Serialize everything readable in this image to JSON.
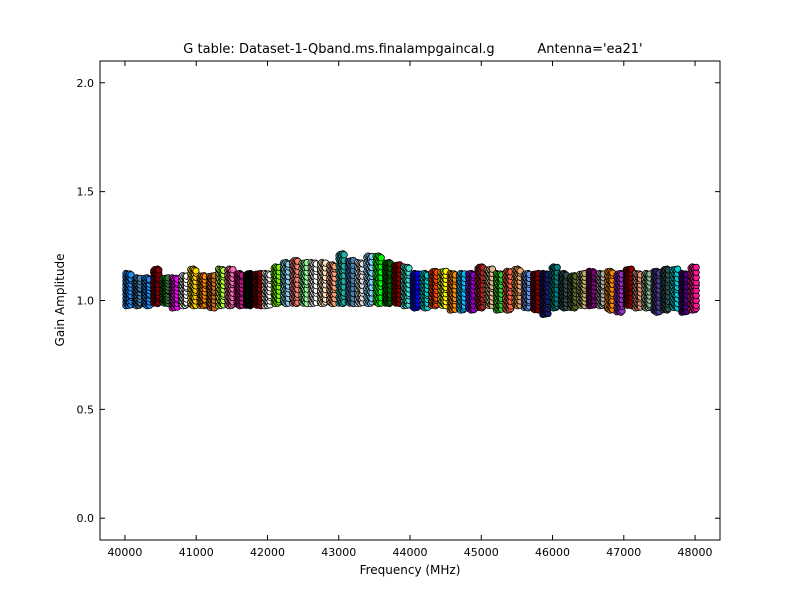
{
  "chart_data": {
    "type": "scatter",
    "title": "G table: Dataset-1-Qband.ms.finalampgaincal.g",
    "antenna_label": "Antenna='ea21'",
    "xlabel": "Frequency (MHz)",
    "ylabel": "Gain Amplitude",
    "xlim": [
      39650,
      48350
    ],
    "ylim": [
      -0.1,
      2.1
    ],
    "xticks": [
      40000,
      41000,
      42000,
      43000,
      44000,
      45000,
      46000,
      47000,
      48000
    ],
    "yticks": [
      0.0,
      0.5,
      1.0,
      1.5,
      2.0
    ],
    "ytick_labels": [
      "0.0",
      "0.5",
      "1.0",
      "1.5",
      "2.0"
    ],
    "grid": false,
    "marker": "circle",
    "spws": [
      {
        "freq": 40050,
        "low": 0.98,
        "high": 1.12,
        "color": "#1e90ff"
      },
      {
        "freq": 40180,
        "low": 0.98,
        "high": 1.1,
        "color": "#4682b4"
      },
      {
        "freq": 40310,
        "low": 0.98,
        "high": 1.1,
        "color": "#1e90ff"
      },
      {
        "freq": 40440,
        "low": 0.99,
        "high": 1.14,
        "color": "#8b0000"
      },
      {
        "freq": 40570,
        "low": 0.99,
        "high": 1.1,
        "color": "#228b22"
      },
      {
        "freq": 40700,
        "low": 0.97,
        "high": 1.1,
        "color": "#ff00ff"
      },
      {
        "freq": 40830,
        "low": 0.98,
        "high": 1.11,
        "color": "#ffffff"
      },
      {
        "freq": 40960,
        "low": 0.98,
        "high": 1.14,
        "color": "#ffd700"
      },
      {
        "freq": 41090,
        "low": 0.98,
        "high": 1.11,
        "color": "#ff8c00"
      },
      {
        "freq": 41220,
        "low": 0.97,
        "high": 1.11,
        "color": "#d2691e"
      },
      {
        "freq": 41350,
        "low": 0.98,
        "high": 1.14,
        "color": "#adff2f"
      },
      {
        "freq": 41480,
        "low": 0.98,
        "high": 1.14,
        "color": "#ff69b4"
      },
      {
        "freq": 41610,
        "low": 0.98,
        "high": 1.12,
        "color": "#c71585"
      },
      {
        "freq": 41740,
        "low": 0.98,
        "high": 1.12,
        "color": "#000000"
      },
      {
        "freq": 41870,
        "low": 0.98,
        "high": 1.12,
        "color": "#8b0000"
      },
      {
        "freq": 42000,
        "low": 0.98,
        "high": 1.12,
        "color": "#ffffff"
      },
      {
        "freq": 42130,
        "low": 0.99,
        "high": 1.15,
        "color": "#7cfc00"
      },
      {
        "freq": 42260,
        "low": 0.99,
        "high": 1.17,
        "color": "#87ceeb"
      },
      {
        "freq": 42390,
        "low": 0.99,
        "high": 1.18,
        "color": "#fa8072"
      },
      {
        "freq": 42520,
        "low": 0.99,
        "high": 1.17,
        "color": "#98fb98"
      },
      {
        "freq": 42650,
        "low": 0.99,
        "high": 1.17,
        "color": "#ffffff"
      },
      {
        "freq": 42780,
        "low": 0.99,
        "high": 1.17,
        "color": "#ffe4c4"
      },
      {
        "freq": 42910,
        "low": 0.99,
        "high": 1.16,
        "color": "#ffa07a"
      },
      {
        "freq": 43040,
        "low": 0.99,
        "high": 1.21,
        "color": "#20b2aa"
      },
      {
        "freq": 43170,
        "low": 0.99,
        "high": 1.18,
        "color": "#4682b4"
      },
      {
        "freq": 43300,
        "low": 0.99,
        "high": 1.17,
        "color": "#dcdcdc"
      },
      {
        "freq": 43430,
        "low": 0.99,
        "high": 1.2,
        "color": "#87cefa"
      },
      {
        "freq": 43560,
        "low": 0.99,
        "high": 1.2,
        "color": "#00ff00"
      },
      {
        "freq": 43690,
        "low": 0.99,
        "high": 1.17,
        "color": "#006400"
      },
      {
        "freq": 43820,
        "low": 0.99,
        "high": 1.16,
        "color": "#8b0000"
      },
      {
        "freq": 43950,
        "low": 0.98,
        "high": 1.15,
        "color": "#40e0d0"
      },
      {
        "freq": 44080,
        "low": 0.97,
        "high": 1.12,
        "color": "#0000ff"
      },
      {
        "freq": 44210,
        "low": 0.97,
        "high": 1.12,
        "color": "#00ced1"
      },
      {
        "freq": 44340,
        "low": 0.98,
        "high": 1.13,
        "color": "#ff4500"
      },
      {
        "freq": 44470,
        "low": 0.98,
        "high": 1.13,
        "color": "#ffff00"
      },
      {
        "freq": 44600,
        "low": 0.96,
        "high": 1.12,
        "color": "#ff8c00"
      },
      {
        "freq": 44730,
        "low": 0.96,
        "high": 1.12,
        "color": "#00bfff"
      },
      {
        "freq": 44860,
        "low": 0.96,
        "high": 1.12,
        "color": "#9400d3"
      },
      {
        "freq": 44990,
        "low": 0.97,
        "high": 1.15,
        "color": "#b22222"
      },
      {
        "freq": 45120,
        "low": 0.98,
        "high": 1.14,
        "color": "#deb887"
      },
      {
        "freq": 45250,
        "low": 0.96,
        "high": 1.12,
        "color": "#32cd32"
      },
      {
        "freq": 45380,
        "low": 0.96,
        "high": 1.13,
        "color": "#ff6347"
      },
      {
        "freq": 45510,
        "low": 0.98,
        "high": 1.14,
        "color": "#f4a460"
      },
      {
        "freq": 45640,
        "low": 0.97,
        "high": 1.12,
        "color": "#6495ed"
      },
      {
        "freq": 45770,
        "low": 0.96,
        "high": 1.12,
        "color": "#800000"
      },
      {
        "freq": 45900,
        "low": 0.94,
        "high": 1.12,
        "color": "#191970"
      },
      {
        "freq": 46030,
        "low": 0.97,
        "high": 1.15,
        "color": "#008080"
      },
      {
        "freq": 46160,
        "low": 0.97,
        "high": 1.12,
        "color": "#2f4f4f"
      },
      {
        "freq": 46290,
        "low": 0.97,
        "high": 1.11,
        "color": "#556b2f"
      },
      {
        "freq": 46420,
        "low": 0.98,
        "high": 1.12,
        "color": "#bdb76b"
      },
      {
        "freq": 46550,
        "low": 0.98,
        "high": 1.13,
        "color": "#800080"
      },
      {
        "freq": 46680,
        "low": 0.98,
        "high": 1.12,
        "color": "#a9a9a9"
      },
      {
        "freq": 46810,
        "low": 0.96,
        "high": 1.13,
        "color": "#ff8c00"
      },
      {
        "freq": 46940,
        "low": 0.95,
        "high": 1.12,
        "color": "#9932cc"
      },
      {
        "freq": 47070,
        "low": 0.98,
        "high": 1.14,
        "color": "#8b0000"
      },
      {
        "freq": 47200,
        "low": 0.97,
        "high": 1.12,
        "color": "#e9967a"
      },
      {
        "freq": 47330,
        "low": 0.97,
        "high": 1.12,
        "color": "#8fbc8f"
      },
      {
        "freq": 47460,
        "low": 0.95,
        "high": 1.13,
        "color": "#483d8b"
      },
      {
        "freq": 47590,
        "low": 0.96,
        "high": 1.14,
        "color": "#2f4f4f"
      },
      {
        "freq": 47720,
        "low": 0.97,
        "high": 1.14,
        "color": "#00ced1"
      },
      {
        "freq": 47850,
        "low": 0.95,
        "high": 1.12,
        "color": "#4b0082"
      },
      {
        "freq": 47980,
        "low": 0.96,
        "high": 1.15,
        "color": "#ff1493"
      }
    ]
  }
}
